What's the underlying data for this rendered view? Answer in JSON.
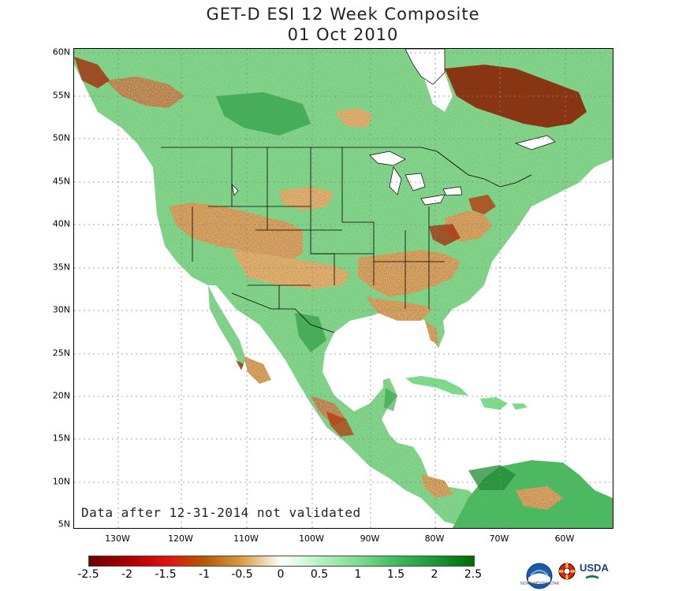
{
  "header": {
    "title": "GET-D ESI 12 Week Composite",
    "date": "01 Oct 2010"
  },
  "map": {
    "lat_labels": [
      "60N",
      "55N",
      "50N",
      "45N",
      "40N",
      "35N",
      "30N",
      "25N",
      "20N",
      "15N",
      "10N",
      "5N"
    ],
    "lon_labels": [
      "130W",
      "120W",
      "110W",
      "100W",
      "90W",
      "80W",
      "70W",
      "60W"
    ],
    "note": "Data after 12-31-2014 not validated",
    "gridlines": "dotted"
  },
  "colorbar": {
    "labels": [
      "-2.5",
      "-2",
      "-1.5",
      "-1",
      "-0.5",
      "0",
      "0.5",
      "1",
      "1.5",
      "2",
      "2.5"
    ],
    "colors": [
      "#6b0000",
      "#a80000",
      "#e01010",
      "#b35a00",
      "#d9a04a",
      "#ffffff",
      "#b7f0c0",
      "#7fdc8f",
      "#40b860",
      "#1a9637",
      "#006b00"
    ]
  },
  "logos": {
    "noaa": "NOAA",
    "noaa_sub": "NOAA/NESDIS/STAR",
    "umd": "University of Maryland",
    "usda": "USDA"
  },
  "colors": {
    "land_moist": "#7fd98c",
    "land_dry": "#c98a32",
    "land_very_dry": "#8b1a00",
    "water": "#ffffff",
    "border": "#000000"
  }
}
